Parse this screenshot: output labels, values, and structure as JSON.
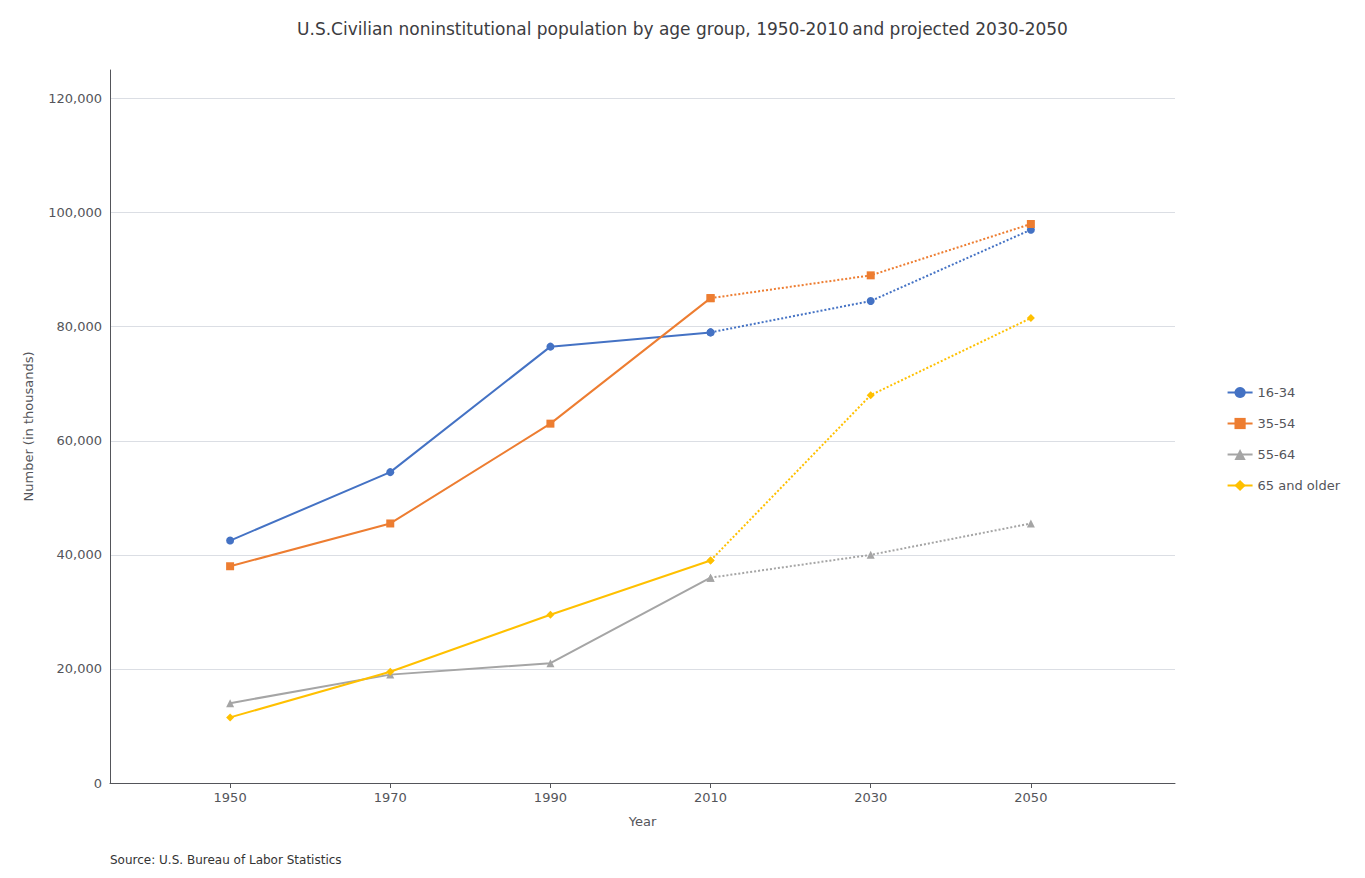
{
  "chart_data": {
    "type": "line",
    "title": "U.S.Civilian noninstitutional population by age group, 1950-2010 and projected 2030-2050",
    "xlabel": "Year",
    "ylabel": "Number (in thousands)",
    "annotation": "Source: U.S. Bureau of Labor Statistics",
    "series": [
      {
        "name": "16-34",
        "color": "#4472C4",
        "marker": "circle",
        "line_style": "solid",
        "x": [
          1950,
          1970,
          1990,
          2010
        ],
        "values": [
          42500,
          54500,
          76500,
          79000
        ]
      },
      {
        "name": "16-34",
        "color": "#4472C4",
        "marker": "circle",
        "line_style": "dotted",
        "x": [
          2010,
          2030,
          2050
        ],
        "values": [
          79000,
          84500,
          97000
        ]
      },
      {
        "name": "35-54",
        "color": "#ED7D31",
        "marker": "square",
        "line_style": "solid",
        "x": [
          1950,
          1970,
          1990,
          2010
        ],
        "values": [
          38000,
          45500,
          63000,
          85000
        ]
      },
      {
        "name": "35-54",
        "color": "#ED7D31",
        "marker": "square",
        "line_style": "dotted",
        "x": [
          2010,
          2030,
          2050
        ],
        "values": [
          85000,
          89000,
          98000
        ]
      },
      {
        "name": "55-64",
        "color": "#A5A5A5",
        "marker": "triangle",
        "line_style": "solid",
        "x": [
          1950,
          1970,
          1990,
          2010
        ],
        "values": [
          14000,
          19000,
          21000,
          36000
        ]
      },
      {
        "name": "55-64",
        "color": "#A5A5A5",
        "marker": "triangle",
        "line_style": "dotted",
        "x": [
          2010,
          2030,
          2050
        ],
        "values": [
          36000,
          40000,
          45500
        ]
      },
      {
        "name": "65 and older",
        "color": "#FFC000",
        "marker": "diamond",
        "line_style": "solid",
        "x": [
          1950,
          1970,
          1990,
          2010
        ],
        "values": [
          11500,
          19500,
          29500,
          39000
        ]
      },
      {
        "name": "65 and older",
        "color": "#FFC000",
        "marker": "diamond",
        "line_style": "dotted",
        "x": [
          2010,
          2030,
          2050
        ],
        "values": [
          39000,
          68000,
          81500
        ]
      }
    ],
    "xlim": [
      1935,
      2068
    ],
    "xticks": [
      1950,
      1970,
      1990,
      2010,
      2030,
      2050
    ],
    "ylim": [
      0,
      125000
    ],
    "yticks": [
      0,
      {
        "value": 20000,
        "label": "20,000"
      },
      {
        "value": 40000,
        "label": "40,000"
      },
      {
        "value": 60000,
        "label": "60,000"
      },
      {
        "value": 80000,
        "label": "80,000"
      },
      {
        "value": 100000,
        "label": "100,000"
      },
      {
        "value": 120000,
        "label": "120,000"
      }
    ],
    "grid": true,
    "legend": "right"
  }
}
